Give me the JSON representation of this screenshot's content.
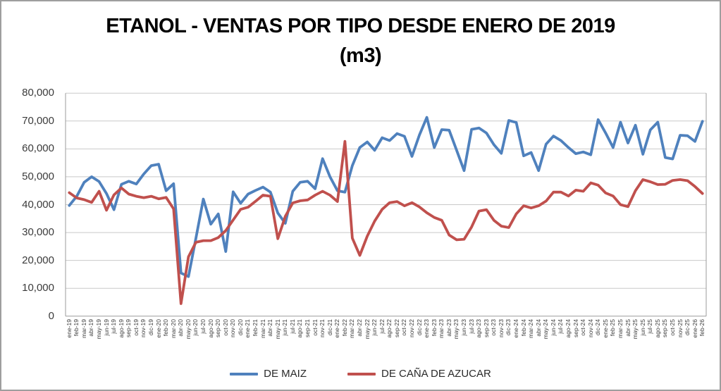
{
  "title": {
    "line1": "ETANOL - VENTAS POR TIPO DESDE ENERO DE 2019",
    "line2": "(m3)"
  },
  "legend": {
    "items": [
      {
        "label": "DE MAIZ",
        "color": "#4F81BD"
      },
      {
        "label": "DE CAÑA DE AZUCAR",
        "color": "#C0504D"
      }
    ]
  },
  "colors": {
    "maiz_line": "#4F81BD",
    "cana_line": "#C0504D",
    "gridline": "#C9C9C9",
    "axis_line": "#9B9B9B",
    "tick_text": "#3b3b3b"
  },
  "chart_data": {
    "type": "line",
    "title": "ETANOL - VENTAS POR TIPO DESDE ENERO DE 2019 (m3)",
    "grid": true,
    "legend_position": "bottom",
    "ylim": [
      0,
      80000
    ],
    "ytick_interval": 10000,
    "ytick_labels": [
      "0",
      "10,000",
      "20,000",
      "30,000",
      "40,000",
      "50,000",
      "60,000",
      "70,000",
      "80,000"
    ],
    "categories": [
      "ene-19",
      "feb-19",
      "mar-19",
      "abr-19",
      "may-19",
      "jun-19",
      "jul-19",
      "ago-19",
      "sep-19",
      "oct-19",
      "nov-19",
      "dic-19",
      "ene-20",
      "feb-20",
      "mar-20",
      "abr-20",
      "may-20",
      "jun-20",
      "jul-20",
      "ago-20",
      "sep-20",
      "oct-20",
      "nov-20",
      "dic-20",
      "ene-21",
      "feb-21",
      "mar-21",
      "abr-21",
      "may-21",
      "jun-21",
      "jul-21",
      "ago-21",
      "sep-21",
      "oct-21",
      "nov-21",
      "dic-21",
      "ene-22",
      "feb-22",
      "mar-22",
      "abr-22",
      "may-22",
      "jun-22",
      "jul-22",
      "ago-22",
      "sep-22",
      "oct-22",
      "nov-22",
      "dic-22",
      "ene-23",
      "feb-23",
      "mar-23",
      "abr-23",
      "may-23",
      "jun-23",
      "jul-23",
      "ago-23",
      "sep-23",
      "oct-23",
      "nov-23",
      "dic-23",
      "ene-24",
      "feb-24",
      "mar-24",
      "abr-24",
      "may-24",
      "jun-24",
      "jul-24",
      "ago-24",
      "sep-24",
      "oct-24",
      "nov-24",
      "dic-24",
      "ene-25",
      "feb-25",
      "mar-25",
      "abr-25",
      "may-25",
      "jun-25",
      "jul-25",
      "ago-25",
      "sep-25",
      "oct-25",
      "nov-25",
      "dic-25",
      "ene-26",
      "feb-26"
    ],
    "series": [
      {
        "name": "DE MAIZ",
        "color": "#4F81BD",
        "values": [
          39700,
          43000,
          48000,
          50000,
          48300,
          44000,
          38200,
          47300,
          48400,
          47400,
          51000,
          54000,
          54500,
          45000,
          47500,
          15500,
          14200,
          28000,
          42000,
          33000,
          36700,
          23200,
          44600,
          40500,
          43800,
          45100,
          46300,
          44500,
          37000,
          33300,
          44800,
          48000,
          48400,
          45700,
          56500,
          50000,
          45000,
          44500,
          54000,
          60500,
          62500,
          59500,
          64000,
          63000,
          65500,
          64500,
          57300,
          65000,
          71300,
          60500,
          66900,
          66700,
          59500,
          52200,
          67000,
          67500,
          65700,
          61500,
          58400,
          70200,
          69500,
          57500,
          58700,
          52200,
          61700,
          64600,
          63000,
          60500,
          58300,
          58900,
          57900,
          70500,
          65700,
          60500,
          69600,
          62100,
          68500,
          58100,
          66800,
          69600,
          56900,
          56400,
          64900,
          64700,
          62700,
          69900
        ]
      },
      {
        "name": "DE CAÑA DE AZUCAR",
        "color": "#C0504D",
        "values": [
          44300,
          42400,
          41800,
          40800,
          44800,
          38000,
          43500,
          46000,
          43800,
          43000,
          42500,
          43000,
          42100,
          42600,
          38500,
          4500,
          21300,
          26500,
          27100,
          27100,
          28200,
          30700,
          34500,
          38300,
          39100,
          41200,
          43400,
          43000,
          27800,
          35800,
          40600,
          41400,
          41700,
          43400,
          44800,
          43400,
          41100,
          62700,
          28000,
          21800,
          28700,
          34100,
          38300,
          40700,
          41100,
          39600,
          40700,
          39200,
          37100,
          35400,
          34400,
          29100,
          27400,
          27600,
          32000,
          37700,
          38200,
          34400,
          32300,
          31800,
          36700,
          39600,
          38800,
          39600,
          41300,
          44500,
          44500,
          43100,
          45200,
          44800,
          47800,
          47000,
          44200,
          43100,
          40000,
          39300,
          45000,
          49000,
          48200,
          47200,
          47300,
          48700,
          49000,
          48600,
          46500,
          44000
        ]
      }
    ]
  }
}
